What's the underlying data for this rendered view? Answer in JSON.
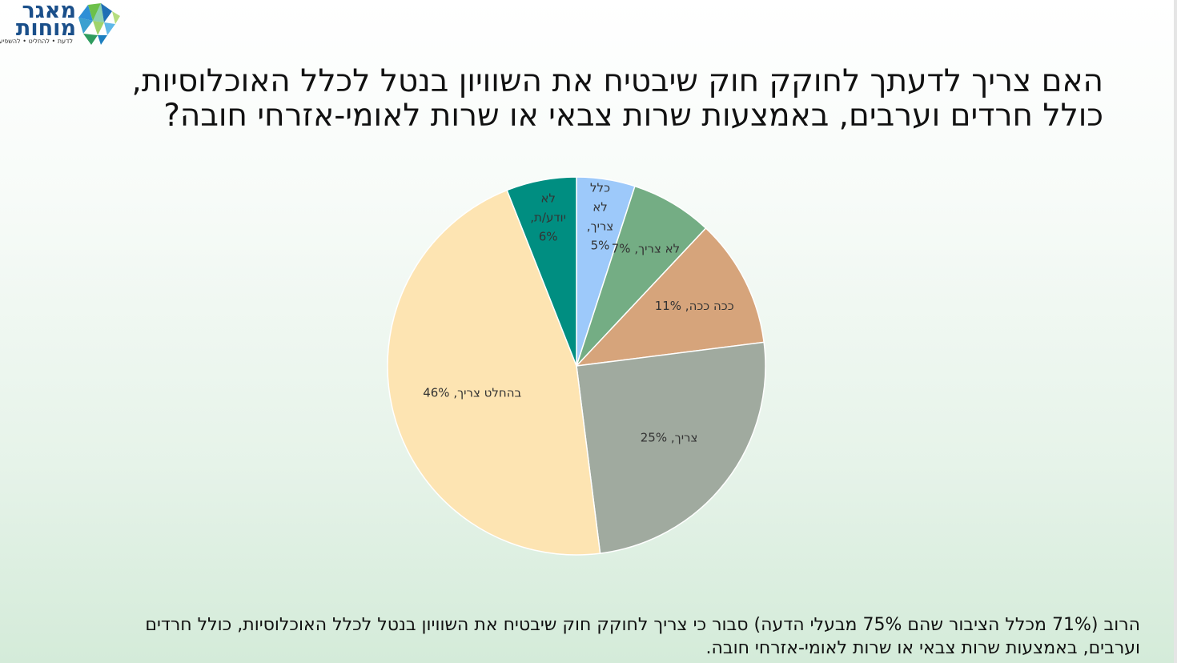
{
  "logo": {
    "line1": "מאגר",
    "line2": "מוחות",
    "tagline": "לדעת • להחליט • להשפיע"
  },
  "title": "האם צריך לדעתך לחוקק חוק שיבטיח את השוויון בנטל לכלל האוכלוסיות, כולל חרדים וערבים, באמצעות שרות צבאי או שרות לאומי-אזרחי חובה?",
  "footer": "הרוב (71% מכלל הציבור שהם 75% מבעלי הדעה) סבור כי צריך לחוקק חוק שיבטיח את השוויון בנטל לכלל האוכלוסיות, כולל חרדים וערבים, באמצעות שרות צבאי או שרות לאומי-אזרחי חובה.",
  "chart_data": {
    "type": "pie",
    "title": "",
    "unit": "%",
    "slices": [
      {
        "label": "כלל לא צריך",
        "value": 5,
        "color": "#9dc9fa"
      },
      {
        "label": "לא צריך",
        "value": 7,
        "color": "#74ad84"
      },
      {
        "label": "ככה ככה",
        "value": 11,
        "color": "#d6a47b"
      },
      {
        "label": "צריך",
        "value": 25,
        "color": "#a0aa9f"
      },
      {
        "label": "בהחלט צריך",
        "value": 46,
        "color": "#fde4b2"
      },
      {
        "label": "לא יודע/ת",
        "value": 6,
        "color": "#008e81"
      }
    ]
  }
}
